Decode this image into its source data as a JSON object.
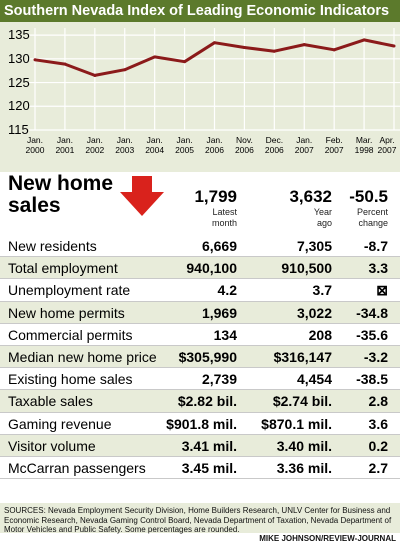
{
  "title": "Southern Nevada Index of Leading Economic Indicators",
  "chart_data": {
    "type": "line",
    "title": "Southern Nevada Index of Leading Economic Indicators",
    "categories": [
      [
        "Jan.",
        "2000"
      ],
      [
        "Jan.",
        "2001"
      ],
      [
        "Jan.",
        "2002"
      ],
      [
        "Jan.",
        "2003"
      ],
      [
        "Jan.",
        "2004"
      ],
      [
        "Jan.",
        "2005"
      ],
      [
        "Jan.",
        "2006"
      ],
      [
        "Nov.",
        "2006"
      ],
      [
        "Dec.",
        "2006"
      ],
      [
        "Jan.",
        "2007"
      ],
      [
        "Feb.",
        "2007"
      ],
      [
        "Mar.",
        "1998"
      ],
      [
        "Apr.",
        "2007"
      ]
    ],
    "values": [
      129.8,
      128.9,
      126.5,
      127.7,
      130.4,
      129.4,
      133.4,
      132.4,
      131.6,
      133.0,
      131.9,
      134.0,
      132.7
    ],
    "yticks": [
      115,
      120,
      125,
      130,
      135
    ],
    "ylim": [
      115,
      136.5
    ],
    "grid": true,
    "line_color": "#8b1a1a",
    "grid_color": "#ffffff"
  },
  "new_home_sales": {
    "label_line1": "New home",
    "label_line2": "sales",
    "latest": "1,799",
    "latest_caption1": "Latest",
    "latest_caption2": "month",
    "year_ago": "3,632",
    "year_ago_caption1": "Year",
    "year_ago_caption2": "ago",
    "change": "-50.5",
    "change_caption1": "Percent",
    "change_caption2": "change",
    "arrow_color": "#d9221c"
  },
  "rows": [
    {
      "label": "New residents",
      "latest": "6,669",
      "year_ago": "7,305",
      "change": "-8.7"
    },
    {
      "label": "Total employment",
      "latest": "940,100",
      "year_ago": "910,500",
      "change": "3.3"
    },
    {
      "label": "Unemployment rate",
      "latest": "4.2",
      "year_ago": "3.7",
      "change": "⊠"
    },
    {
      "label": "New home permits",
      "latest": "1,969",
      "year_ago": "3,022",
      "change": "-34.8"
    },
    {
      "label": "Commercial permits",
      "latest": "134",
      "year_ago": "208",
      "change": "-35.6"
    },
    {
      "label": "Median new home price",
      "latest": "$305,990",
      "year_ago": "$316,147",
      "change": "-3.2"
    },
    {
      "label": "Existing home sales",
      "latest": "2,739",
      "year_ago": "4,454",
      "change": "-38.5"
    },
    {
      "label": "Taxable sales",
      "latest": "$2.82 bil.",
      "year_ago": "$2.74 bil.",
      "change": "2.8"
    },
    {
      "label": "Gaming revenue",
      "latest": "$901.8 mil.",
      "year_ago": "$870.1 mil.",
      "change": "3.6"
    },
    {
      "label": "Visitor volume",
      "latest": "3.41 mil.",
      "year_ago": "3.40 mil.",
      "change": "0.2"
    },
    {
      "label": "McCarran passengers",
      "latest": "3.45 mil.",
      "year_ago": "3.36 mil.",
      "change": "2.7"
    }
  ],
  "sources": "SOURCES: Nevada Employment Security Division, Home Builders Research, UNLV Center for Business and Economic Research, Nevada Gaming Control Board, Nevada Department of Taxation, Nevada Department of Motor Vehicles and Public Safety. Some percentages are rounded.",
  "credit": "MIKE JOHNSON/REVIEW-JOURNAL",
  "colors": {
    "title_bar": "#5c7a2c",
    "panel": "#e8ecda"
  }
}
